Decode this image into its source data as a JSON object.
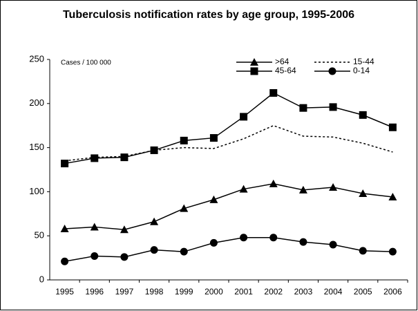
{
  "chart_data": {
    "type": "line",
    "title": "Tuberculosis notification rates by age group, 1995-2006",
    "y_label": "Cases / 100 000",
    "categories": [
      "1995",
      "1996",
      "1997",
      "1998",
      "1999",
      "2000",
      "2001",
      "2002",
      "2003",
      "2004",
      "2005",
      "2006"
    ],
    "series": [
      {
        "name": ">64",
        "color": "#000000",
        "marker": "triangle",
        "dash": false,
        "values": [
          58,
          60,
          57,
          66,
          81,
          91,
          103,
          109,
          102,
          105,
          98,
          94
        ]
      },
      {
        "name": "15-44",
        "color": "#000000",
        "marker": "none",
        "dash": true,
        "values": [
          135,
          139,
          140,
          147,
          150,
          149,
          160,
          175,
          163,
          162,
          155,
          145
        ]
      },
      {
        "name": "45-64",
        "color": "#000000",
        "marker": "square",
        "dash": false,
        "values": [
          132,
          138,
          139,
          147,
          158,
          161,
          185,
          212,
          195,
          196,
          187,
          173
        ]
      },
      {
        "name": "0-14",
        "color": "#000000",
        "marker": "circle",
        "dash": false,
        "values": [
          21,
          27,
          26,
          34,
          32,
          42,
          48,
          48,
          43,
          40,
          33,
          32
        ]
      }
    ],
    "ylim": [
      0,
      250
    ],
    "yticks": [
      0,
      50,
      100,
      150,
      200,
      250
    ],
    "grid": false
  }
}
